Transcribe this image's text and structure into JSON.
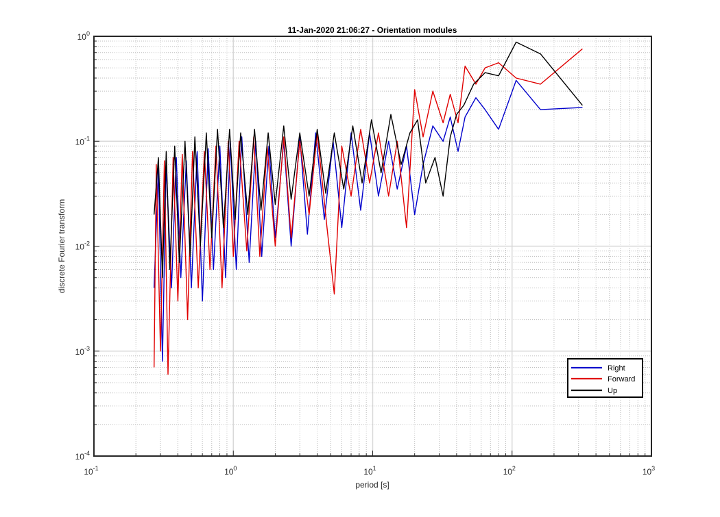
{
  "chart_data": {
    "type": "line",
    "title": "11-Jan-2020 21:06:27 - Orientation modules",
    "xlabel": "period [s]",
    "ylabel": "discrete Fourier transform",
    "xscale": "log",
    "yscale": "log",
    "xlim": [
      0.1,
      1000
    ],
    "ylim": [
      0.0001,
      1
    ],
    "grid": "major and minor",
    "legend_position": "bottom-right",
    "x_ticks": [
      {
        "base": "10",
        "exp": "-1"
      },
      {
        "base": "10",
        "exp": "0"
      },
      {
        "base": "10",
        "exp": "1"
      },
      {
        "base": "10",
        "exp": "2"
      },
      {
        "base": "10",
        "exp": "3"
      }
    ],
    "y_ticks": [
      {
        "base": "10",
        "exp": "-4"
      },
      {
        "base": "10",
        "exp": "-3"
      },
      {
        "base": "10",
        "exp": "-2"
      },
      {
        "base": "10",
        "exp": "-1"
      },
      {
        "base": "10",
        "exp": "0"
      }
    ],
    "series": [
      {
        "name": "Right",
        "color": "#0000cc",
        "x": [
          0.27,
          0.29,
          0.31,
          0.33,
          0.36,
          0.39,
          0.42,
          0.46,
          0.5,
          0.55,
          0.6,
          0.66,
          0.72,
          0.8,
          0.88,
          0.95,
          1.05,
          1.15,
          1.3,
          1.45,
          1.6,
          1.8,
          2.0,
          2.3,
          2.6,
          3.0,
          3.4,
          3.9,
          4.5,
          5.2,
          6.0,
          7.0,
          8.2,
          9.5,
          11,
          13,
          15,
          17.5,
          20,
          23,
          27,
          32,
          36,
          41,
          46,
          55,
          64,
          80,
          107,
          160,
          320
        ],
        "y": [
          0.004,
          0.055,
          0.0008,
          0.06,
          0.004,
          0.07,
          0.005,
          0.065,
          0.004,
          0.08,
          0.003,
          0.085,
          0.006,
          0.09,
          0.005,
          0.1,
          0.006,
          0.11,
          0.007,
          0.1,
          0.008,
          0.09,
          0.012,
          0.1,
          0.01,
          0.11,
          0.013,
          0.12,
          0.018,
          0.1,
          0.015,
          0.12,
          0.022,
          0.12,
          0.03,
          0.1,
          0.035,
          0.09,
          0.02,
          0.06,
          0.14,
          0.1,
          0.17,
          0.08,
          0.17,
          0.26,
          0.2,
          0.13,
          0.38,
          0.2,
          0.21
        ]
      },
      {
        "name": "Forward",
        "color": "#e00000",
        "x": [
          0.27,
          0.28,
          0.3,
          0.32,
          0.34,
          0.37,
          0.4,
          0.43,
          0.47,
          0.51,
          0.56,
          0.62,
          0.68,
          0.75,
          0.83,
          0.92,
          1.0,
          1.1,
          1.25,
          1.4,
          1.55,
          1.75,
          2.0,
          2.3,
          2.6,
          3.0,
          3.5,
          4.0,
          4.7,
          5.3,
          6.0,
          7.0,
          8.2,
          9.5,
          11,
          13,
          15,
          17.5,
          20,
          23,
          27,
          32,
          36,
          41,
          46,
          55,
          64,
          80,
          107,
          160,
          320
        ],
        "y": [
          0.0007,
          0.06,
          0.001,
          0.065,
          0.0006,
          0.07,
          0.003,
          0.075,
          0.002,
          0.08,
          0.004,
          0.08,
          0.006,
          0.09,
          0.004,
          0.1,
          0.008,
          0.1,
          0.009,
          0.11,
          0.008,
          0.09,
          0.01,
          0.11,
          0.012,
          0.1,
          0.02,
          0.12,
          0.015,
          0.0035,
          0.09,
          0.03,
          0.13,
          0.04,
          0.12,
          0.03,
          0.1,
          0.015,
          0.31,
          0.11,
          0.3,
          0.15,
          0.28,
          0.15,
          0.52,
          0.35,
          0.5,
          0.56,
          0.4,
          0.35,
          0.76
        ]
      },
      {
        "name": "Up",
        "color": "#000000",
        "x": [
          0.27,
          0.29,
          0.31,
          0.33,
          0.35,
          0.38,
          0.41,
          0.45,
          0.49,
          0.53,
          0.58,
          0.64,
          0.7,
          0.77,
          0.85,
          0.94,
          1.03,
          1.13,
          1.27,
          1.42,
          1.58,
          1.78,
          2.0,
          2.3,
          2.6,
          3.0,
          3.5,
          4.0,
          4.6,
          5.3,
          6.2,
          7.2,
          8.4,
          9.8,
          11.5,
          13.5,
          16,
          18.5,
          21,
          24,
          28,
          32,
          36,
          40,
          45,
          53,
          64,
          80,
          107,
          160,
          320
        ],
        "y": [
          0.02,
          0.07,
          0.005,
          0.08,
          0.006,
          0.09,
          0.007,
          0.1,
          0.008,
          0.11,
          0.01,
          0.12,
          0.012,
          0.13,
          0.015,
          0.13,
          0.018,
          0.12,
          0.02,
          0.13,
          0.022,
          0.12,
          0.025,
          0.14,
          0.028,
          0.12,
          0.03,
          0.13,
          0.032,
          0.12,
          0.035,
          0.14,
          0.04,
          0.16,
          0.05,
          0.18,
          0.06,
          0.12,
          0.16,
          0.04,
          0.07,
          0.03,
          0.11,
          0.18,
          0.22,
          0.35,
          0.45,
          0.42,
          0.88,
          0.68,
          0.22
        ]
      }
    ]
  }
}
